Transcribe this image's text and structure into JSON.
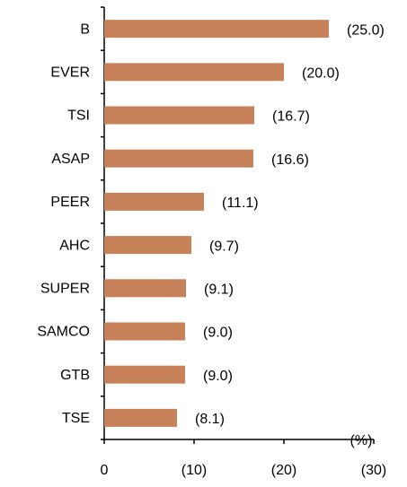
{
  "chart_data": {
    "type": "bar",
    "orientation": "horizontal",
    "categories": [
      "B",
      "EVER",
      "TSI",
      "ASAP",
      "PEER",
      "AHC",
      "SUPER",
      "SAMCO",
      "GTB",
      "TSE"
    ],
    "values": [
      -25.0,
      -20.0,
      -16.7,
      -16.6,
      -11.1,
      -9.7,
      -9.1,
      -9.0,
      -9.0,
      -8.1
    ],
    "value_labels": [
      "(25.0)",
      "(20.0)",
      "(16.7)",
      "(16.6)",
      "(11.1)",
      "(9.7)",
      "(9.1)",
      "(9.0)",
      "(9.0)",
      "(8.1)"
    ],
    "color": "#c8825a",
    "xlim": [
      0,
      -30
    ],
    "xticks": [
      0,
      {
        "value": -10,
        "label": "(10)"
      },
      {
        "value": -20,
        "label": "(20)"
      },
      {
        "value": -30,
        "label": "(30)"
      }
    ],
    "unit": "(%)",
    "grid": false
  }
}
